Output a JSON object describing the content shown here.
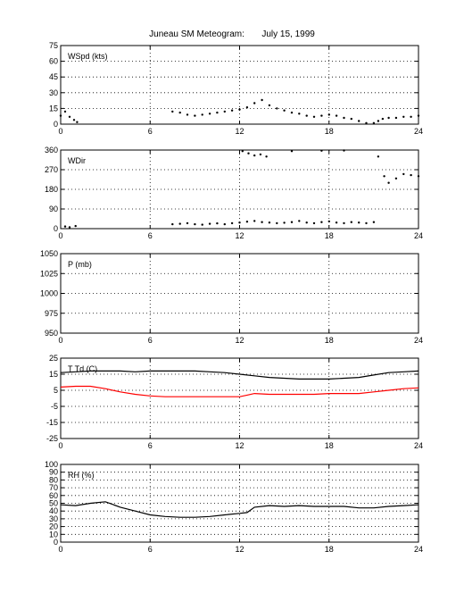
{
  "title": "Juneau SM Meteogram:       July 15, 1999",
  "chart_data": [
    {
      "type": "scatter",
      "label": "WSpd (kts)",
      "xlim": [
        0,
        24
      ],
      "ylim": [
        0,
        75
      ],
      "xticks": [
        0,
        6,
        12,
        18,
        24
      ],
      "yticks": [
        0,
        15,
        30,
        45,
        60,
        75
      ],
      "grid": true,
      "series": [
        {
          "color": "#000000",
          "x": [
            0.0,
            0.3,
            0.6,
            0.9,
            1.1,
            7.5,
            8.0,
            8.5,
            9.0,
            9.5,
            10.0,
            10.5,
            11.0,
            11.5,
            12.0,
            12.5,
            13.0,
            13.5,
            14.0,
            14.5,
            15.0,
            15.5,
            16.0,
            16.5,
            17.0,
            17.5,
            18.0,
            18.5,
            19.0,
            19.5,
            20.0,
            20.5,
            21.0,
            21.3,
            21.6,
            22.0,
            22.5,
            23.0,
            23.5,
            24.0
          ],
          "y": [
            8,
            12,
            7,
            4,
            2,
            12,
            11,
            9,
            8,
            9,
            10,
            11,
            12,
            13,
            14,
            16,
            20,
            23,
            18,
            15,
            13,
            11,
            10,
            8,
            7,
            8,
            9,
            8,
            6,
            5,
            3,
            1,
            1,
            3,
            5,
            6,
            6,
            7,
            7,
            8
          ]
        }
      ]
    },
    {
      "type": "scatter",
      "label": "WDir",
      "xlim": [
        0,
        24
      ],
      "ylim": [
        0,
        360
      ],
      "xticks": [
        0,
        6,
        12,
        18,
        24
      ],
      "yticks": [
        0,
        90,
        180,
        270,
        360
      ],
      "grid": true,
      "series": [
        {
          "color": "#000000",
          "x": [
            0.3,
            0.6,
            1.0,
            7.5,
            8.0,
            8.5,
            9.0,
            9.5,
            10.0,
            10.5,
            11.0,
            11.5,
            12.0,
            12.5,
            13.0,
            13.5,
            14.0,
            14.5,
            15.0,
            15.5,
            16.0,
            16.5,
            17.0,
            17.5,
            18.0,
            18.5,
            19.0,
            19.5,
            20.0,
            20.5,
            21.0,
            12.2,
            12.6,
            13.0,
            13.4,
            13.8,
            15.5,
            17.5,
            19.0,
            21.3,
            21.7,
            22.0,
            22.5,
            23.0,
            23.5,
            24.0
          ],
          "y": [
            10,
            6,
            12,
            20,
            22,
            25,
            20,
            18,
            22,
            24,
            20,
            25,
            28,
            32,
            35,
            30,
            28,
            25,
            27,
            30,
            35,
            28,
            25,
            30,
            33,
            28,
            25,
            30,
            28,
            25,
            30,
            355,
            345,
            335,
            340,
            330,
            355,
            357,
            358,
            330,
            240,
            210,
            230,
            250,
            245,
            240
          ]
        }
      ]
    },
    {
      "type": "scatter",
      "label": "P (mb)",
      "xlim": [
        0,
        24
      ],
      "ylim": [
        950,
        1050
      ],
      "xticks": [
        0,
        6,
        12,
        18,
        24
      ],
      "yticks": [
        950,
        975,
        1000,
        1025,
        1050
      ],
      "grid": true,
      "series": []
    },
    {
      "type": "line",
      "label": "T Td (C)",
      "xlim": [
        0,
        24
      ],
      "ylim": [
        -25,
        25
      ],
      "xticks": [
        0,
        6,
        12,
        18,
        24
      ],
      "yticks": [
        -25,
        -15,
        -5,
        5,
        15,
        25
      ],
      "grid": true,
      "series": [
        {
          "color": "#000000",
          "x": [
            0,
            1,
            2,
            3,
            4,
            5,
            6,
            7,
            8,
            9,
            10,
            11,
            12,
            13,
            14,
            15,
            16,
            17,
            18,
            19,
            20,
            21,
            22,
            23,
            24
          ],
          "y": [
            16,
            16.5,
            17,
            17,
            17,
            16.5,
            17,
            17,
            17,
            17,
            16.5,
            16,
            15,
            14,
            13,
            12.5,
            12,
            12,
            12,
            12.5,
            13,
            14.5,
            16,
            16.5,
            17
          ]
        },
        {
          "color": "#ff0000",
          "x": [
            0,
            1,
            2,
            3,
            4,
            5,
            6,
            7,
            8,
            9,
            10,
            11,
            12,
            12.5,
            13,
            14,
            15,
            16,
            17,
            18,
            19,
            20,
            21,
            22,
            23,
            24
          ],
          "y": [
            7,
            7.5,
            7.5,
            6,
            4,
            2.5,
            1.5,
            1,
            1,
            1,
            1,
            1,
            1,
            2,
            3,
            2.5,
            2.5,
            2.5,
            2.5,
            3,
            3,
            3,
            4,
            5,
            6,
            6.5
          ]
        }
      ]
    },
    {
      "type": "line",
      "label": "RH (%)",
      "xlim": [
        0,
        24
      ],
      "ylim": [
        0,
        100
      ],
      "xticks": [
        0,
        6,
        12,
        18,
        24
      ],
      "yticks": [
        0,
        10,
        20,
        30,
        40,
        50,
        60,
        70,
        80,
        90,
        100
      ],
      "grid": true,
      "series": [
        {
          "color": "#000000",
          "x": [
            0,
            1,
            2,
            3,
            4,
            5,
            6,
            7,
            8,
            9,
            10,
            11,
            12,
            12.5,
            13,
            14,
            15,
            16,
            17,
            18,
            19,
            20,
            21,
            22,
            23,
            24
          ],
          "y": [
            48,
            47,
            50,
            52,
            45,
            40,
            35,
            33,
            32,
            32,
            33,
            35,
            37,
            38,
            45,
            47,
            46,
            47,
            46,
            46,
            46,
            44,
            44,
            46,
            47,
            48
          ]
        }
      ]
    }
  ]
}
